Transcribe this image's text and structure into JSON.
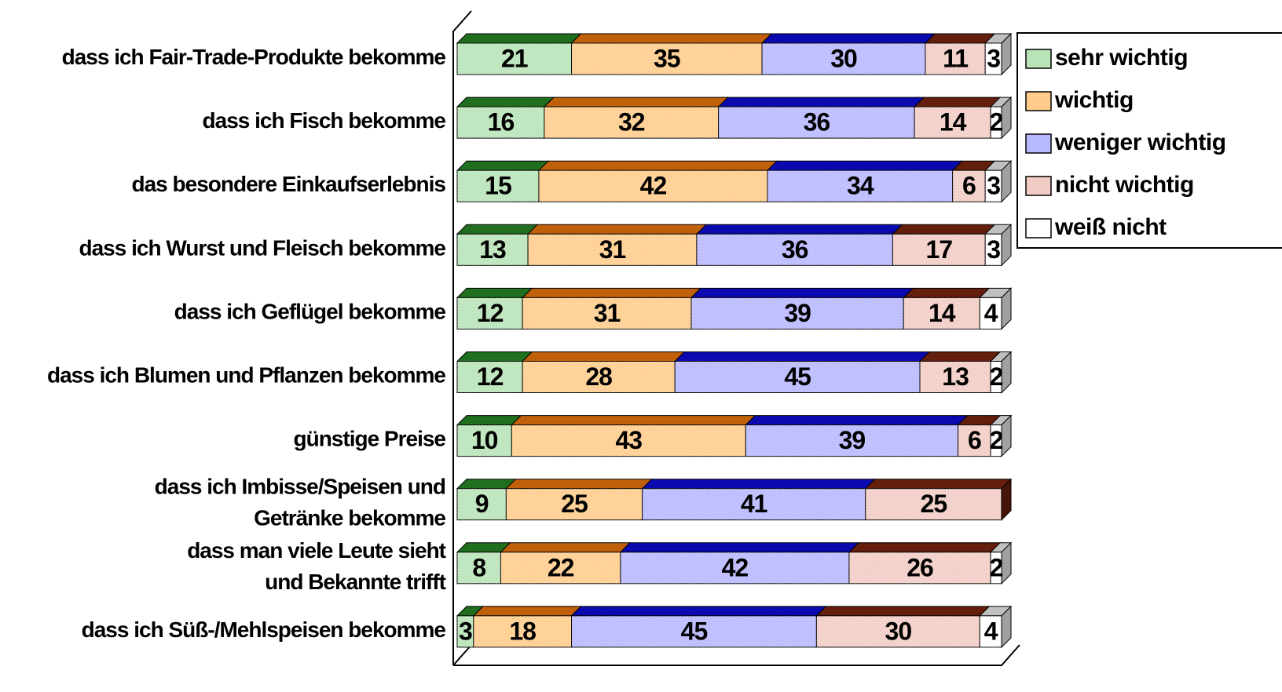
{
  "chart_data": {
    "type": "stacked-bar-3d",
    "orientation": "horizontal",
    "categories": [
      "dass ich Fair-Trade-Produkte bekomme",
      "dass ich Fisch bekomme",
      "das besondere Einkaufserlebnis",
      "dass ich Wurst und Fleisch bekomme",
      "dass ich Geflügel bekomme",
      "dass ich Blumen und Pflanzen bekomme",
      "günstige Preise",
      "dass ich Imbisse/Speisen und\nGetränke bekomme",
      "dass man viele Leute sieht\nund Bekannte trifft",
      "dass ich Süß-/Mehlspeisen bekomme"
    ],
    "series": [
      {
        "name": "sehr wichtig",
        "color": "#b8e4b8",
        "top_color": "#1f6f1f",
        "values": [
          21,
          16,
          15,
          13,
          12,
          12,
          10,
          9,
          8,
          3
        ]
      },
      {
        "name": "wichtig",
        "color": "#ffcc8c",
        "top_color": "#c0600a",
        "values": [
          35,
          32,
          42,
          31,
          31,
          28,
          43,
          25,
          22,
          18
        ]
      },
      {
        "name": "weniger wichtig",
        "color": "#b8b8ff",
        "top_color": "#0a0ab0",
        "values": [
          30,
          36,
          34,
          36,
          39,
          45,
          39,
          41,
          42,
          45
        ]
      },
      {
        "name": "nicht wichtig",
        "color": "#f2ccc4",
        "top_color": "#641e0c",
        "values": [
          11,
          14,
          6,
          17,
          14,
          13,
          6,
          25,
          26,
          30
        ]
      },
      {
        "name": "weiß nicht",
        "color": "#ffffff",
        "top_color": "#c0c0c0",
        "values": [
          3,
          2,
          3,
          3,
          4,
          2,
          2,
          null,
          2,
          4
        ]
      }
    ],
    "xlim": [
      0,
      100
    ],
    "legend": "right"
  }
}
